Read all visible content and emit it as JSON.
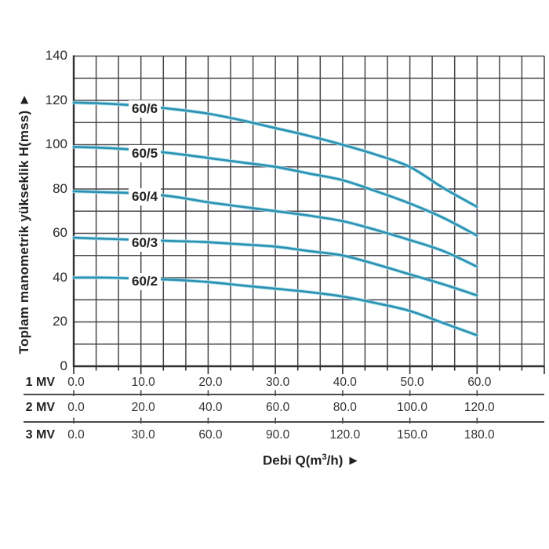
{
  "chart_data": {
    "type": "line",
    "ylabel": "Toplam manometrik yükseklik H(mss) ►",
    "xlabel": {
      "prefix": "Debi Q(m",
      "sup": "3",
      "suffix": "/h) ►"
    },
    "grid": true,
    "ylim": [
      0,
      140
    ],
    "y_ticks": [
      "0",
      "20",
      "40",
      "60",
      "80",
      "100",
      "120",
      "140"
    ],
    "x_rows": [
      {
        "label": "1 MV",
        "ticks": [
          "0.0",
          "10.0",
          "20.0",
          "30.0",
          "40.0",
          "50.0",
          "60.0"
        ]
      },
      {
        "label": "2 MV",
        "ticks": [
          "0.0",
          "20.0",
          "40.0",
          "60.0",
          "80.0",
          "100.0",
          "120.0"
        ]
      },
      {
        "label": "3 MV",
        "ticks": [
          "0.0",
          "30.0",
          "60.0",
          "90.0",
          "120.0",
          "150.0",
          "180.0"
        ]
      }
    ],
    "x_values_1mv": [
      0,
      5,
      10,
      15,
      20,
      25,
      30,
      35,
      40,
      45,
      50,
      55,
      60
    ],
    "series": [
      {
        "name": "60/6",
        "values": [
          119,
          118.5,
          117.5,
          116,
          114,
          111,
          107.5,
          104,
          100,
          95.5,
          90,
          80.5,
          72
        ]
      },
      {
        "name": "60/5",
        "values": [
          99,
          98.5,
          97.5,
          96,
          94,
          92,
          90,
          87,
          84,
          79,
          73.5,
          67,
          59
        ]
      },
      {
        "name": "60/4",
        "values": [
          79,
          78.5,
          78,
          76.5,
          74,
          72,
          70,
          68,
          65.5,
          61.5,
          57,
          52,
          45
        ]
      },
      {
        "name": "60/3",
        "values": [
          58,
          57.5,
          57,
          56.5,
          56,
          55,
          54,
          52,
          50,
          46,
          41.5,
          37,
          32
        ]
      },
      {
        "name": "60/2",
        "values": [
          40,
          40,
          39.5,
          39,
          38,
          36.5,
          35,
          33.5,
          31.5,
          28.5,
          25,
          19.5,
          14
        ]
      }
    ],
    "colors": {
      "curve": "#2a91b2",
      "curve_halo": "#a3dbe8",
      "grid": "#47474c",
      "axis": "#2f2f33",
      "separator": "#4a4a4a",
      "text": "#2a2a2a"
    }
  }
}
